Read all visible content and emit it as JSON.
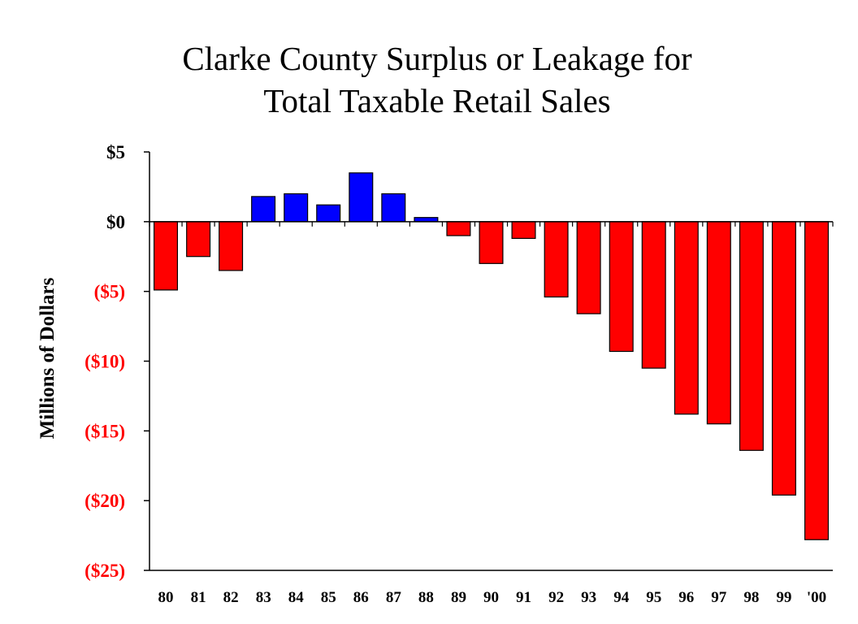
{
  "chart_data": {
    "type": "bar",
    "title_lines": [
      "Clarke County Surplus or Leakage for",
      "Total Taxable Retail Sales"
    ],
    "xlabel": "",
    "ylabel": "Millions of Dollars",
    "ylim": [
      -25,
      5
    ],
    "y_ticks": [
      {
        "value": 5,
        "label": "$5"
      },
      {
        "value": 0,
        "label": "$0"
      },
      {
        "value": -5,
        "label": "($5)"
      },
      {
        "value": -10,
        "label": "($10)"
      },
      {
        "value": -15,
        "label": "($15)"
      },
      {
        "value": -20,
        "label": "($20)"
      },
      {
        "value": -25,
        "label": "($25)"
      }
    ],
    "categories": [
      "80",
      "81",
      "82",
      "83",
      "84",
      "85",
      "86",
      "87",
      "88",
      "89",
      "90",
      "91",
      "92",
      "93",
      "94",
      "95",
      "96",
      "97",
      "98",
      "99",
      "'00"
    ],
    "values": [
      -4.9,
      -2.5,
      -3.5,
      1.8,
      2.0,
      1.2,
      3.5,
      2.0,
      0.3,
      -1.0,
      -3.0,
      -1.2,
      -5.4,
      -6.6,
      -9.3,
      -10.5,
      -13.8,
      -14.5,
      -16.4,
      -19.6,
      -22.8
    ],
    "grid": false,
    "colors": {
      "positive": "#0000FF",
      "negative": "#FF0000",
      "positive_label": "#000000",
      "negative_label": "#FF0000",
      "axis": "#000000"
    }
  }
}
